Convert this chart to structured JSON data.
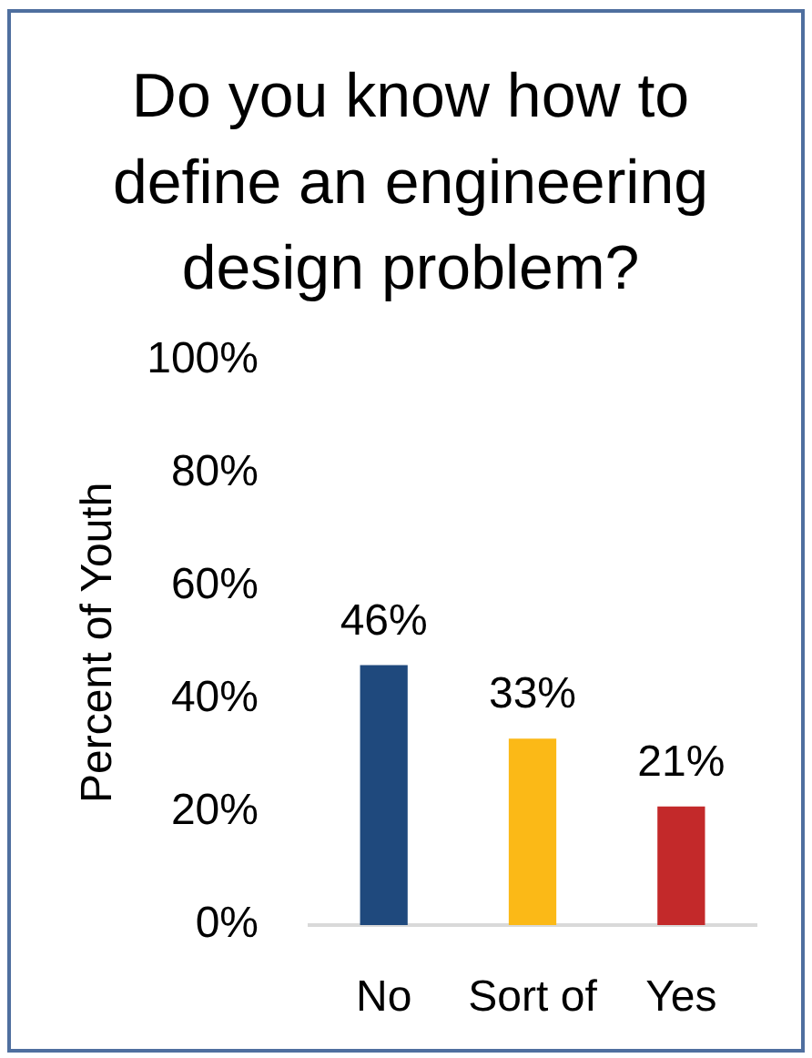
{
  "chart_data": {
    "type": "bar",
    "title": "Do you know how to define an engineering design problem?",
    "ylabel": "Percent of Youth",
    "categories": [
      "No",
      "Sort of",
      "Yes"
    ],
    "values": [
      46,
      33,
      21
    ],
    "colors": [
      "#1f497d",
      "#fbb917",
      "#c3292a"
    ],
    "value_labels": [
      "46%",
      "33%",
      "21%"
    ],
    "ylim": [
      0,
      100
    ],
    "yticks": [
      {
        "value": 0,
        "label": "0%"
      },
      {
        "value": 20,
        "label": "20%"
      },
      {
        "value": 40,
        "label": "40%"
      },
      {
        "value": 60,
        "label": "60%"
      },
      {
        "value": 80,
        "label": "80%"
      },
      {
        "value": 100,
        "label": "100%"
      }
    ]
  }
}
